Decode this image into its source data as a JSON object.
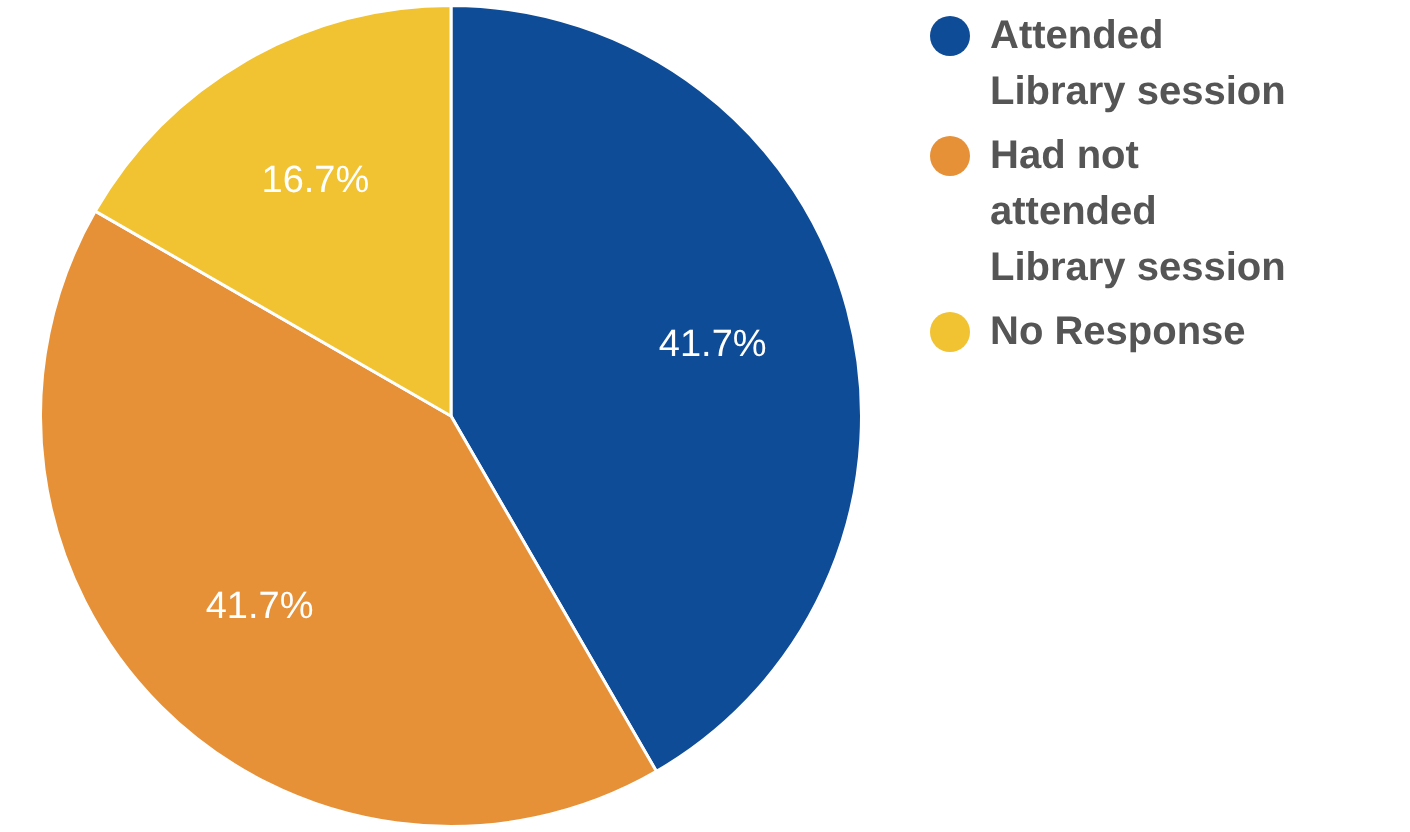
{
  "chart_data": {
    "type": "pie",
    "categories": [
      "Attended Library session",
      "Had not attended Library session",
      "No Response"
    ],
    "values": [
      41.7,
      41.7,
      16.7
    ],
    "colors": [
      "#0f4c97",
      "#e69138",
      "#f1c232"
    ],
    "value_labels": [
      "41.7%",
      "41.7%",
      "16.7%"
    ],
    "legend": "top right"
  }
}
